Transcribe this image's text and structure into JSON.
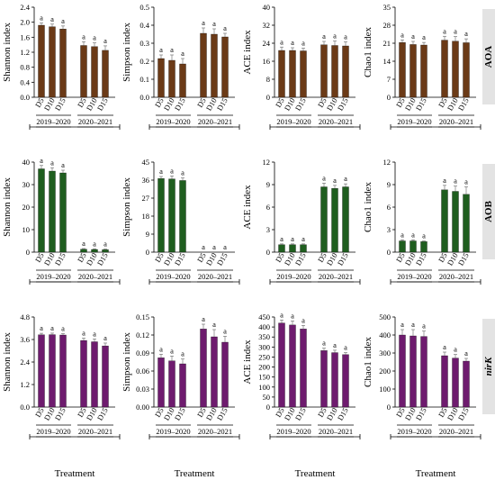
{
  "figure": {
    "xlabel": "Treatment",
    "groups": [
      "D5",
      "D10",
      "D15"
    ],
    "years": [
      "2019–2020",
      "2020–2021"
    ],
    "sig_letter": "a",
    "rows": [
      {
        "label": "AOA",
        "color": "#6b3a17"
      },
      {
        "label": "AOB",
        "color": "#1f5e1f"
      },
      {
        "label": "nirK",
        "color": "#6e1b6e"
      }
    ]
  },
  "chart_data": [
    {
      "type": "bar",
      "row": "AOA",
      "ylabel": "Shannon index",
      "ylim": [
        0,
        2.4
      ],
      "yticks": [
        "0.0",
        "0.4",
        "0.8",
        "1.2",
        "1.6",
        "2.0",
        "2.4"
      ],
      "categories": [
        "D5",
        "D10",
        "D15",
        "D5",
        "D10",
        "D15"
      ],
      "values": [
        1.92,
        1.88,
        1.82,
        1.38,
        1.35,
        1.25
      ],
      "errors": [
        0.06,
        0.07,
        0.08,
        0.1,
        0.1,
        0.12
      ]
    },
    {
      "type": "bar",
      "row": "AOA",
      "ylabel": "Simpson index",
      "ylim": [
        0,
        0.5
      ],
      "yticks": [
        "0.0",
        "0.1",
        "0.2",
        "0.3",
        "0.4",
        "0.5"
      ],
      "categories": [
        "D5",
        "D10",
        "D15",
        "D5",
        "D10",
        "D15"
      ],
      "values": [
        0.215,
        0.205,
        0.185,
        0.355,
        0.35,
        0.335
      ],
      "errors": [
        0.02,
        0.03,
        0.03,
        0.03,
        0.03,
        0.02
      ]
    },
    {
      "type": "bar",
      "row": "AOA",
      "ylabel": "ACE index",
      "ylim": [
        0,
        40
      ],
      "yticks": [
        "0",
        "8",
        "16",
        "24",
        "32",
        "40"
      ],
      "categories": [
        "D5",
        "D10",
        "D15",
        "D5",
        "D10",
        "D15"
      ],
      "values": [
        20.8,
        20.8,
        20.6,
        23.3,
        23.0,
        22.8
      ],
      "errors": [
        1.5,
        1.2,
        1.2,
        1.5,
        2.0,
        1.8
      ]
    },
    {
      "type": "bar",
      "row": "AOA",
      "ylabel": "Chao1 index",
      "ylim": [
        0,
        35
      ],
      "yticks": [
        "0",
        "7",
        "14",
        "21",
        "28",
        "35"
      ],
      "categories": [
        "D5",
        "D10",
        "D15",
        "D5",
        "D10",
        "D15"
      ],
      "values": [
        21.3,
        20.5,
        20.3,
        22.2,
        21.8,
        21.2
      ],
      "errors": [
        1.0,
        1.2,
        1.0,
        1.5,
        1.8,
        1.5
      ]
    },
    {
      "type": "bar",
      "row": "AOB",
      "ylabel": "Shannon index",
      "ylim": [
        0,
        40
      ],
      "yticks": [
        "0",
        "10",
        "20",
        "30",
        "40"
      ],
      "categories": [
        "D5",
        "D10",
        "D15",
        "D5",
        "D10",
        "D15"
      ],
      "values": [
        37,
        36,
        35.2,
        1.3,
        1.2,
        1.1
      ],
      "errors": [
        1.5,
        1.5,
        1.2,
        0.3,
        0.3,
        0.3
      ]
    },
    {
      "type": "bar",
      "row": "AOB",
      "ylabel": "Simpson index",
      "ylim": [
        0,
        45
      ],
      "yticks": [
        "0",
        "9",
        "18",
        "27",
        "36",
        "45"
      ],
      "categories": [
        "D5",
        "D10",
        "D15",
        "D5",
        "D10",
        "D15"
      ],
      "values": [
        36.8,
        36.6,
        35.8,
        0,
        0,
        0
      ],
      "errors": [
        1.0,
        1.5,
        1.3,
        0,
        0,
        0
      ]
    },
    {
      "type": "bar",
      "row": "AOB",
      "ylabel": "ACE index",
      "ylim": [
        0,
        12
      ],
      "yticks": [
        "0",
        "3",
        "6",
        "9",
        "12"
      ],
      "categories": [
        "D5",
        "D10",
        "D15",
        "D5",
        "D10",
        "D15"
      ],
      "values": [
        1.0,
        1.0,
        1.0,
        8.7,
        8.5,
        8.7
      ],
      "errors": [
        0.1,
        0.1,
        0.1,
        0.5,
        0.4,
        0.4
      ]
    },
    {
      "type": "bar",
      "row": "AOB",
      "ylabel": "Chao1 index",
      "ylim": [
        0,
        12
      ],
      "yticks": [
        "0",
        "3",
        "6",
        "9",
        "12"
      ],
      "categories": [
        "D5",
        "D10",
        "D15",
        "D5",
        "D10",
        "D15"
      ],
      "values": [
        1.5,
        1.5,
        1.4,
        8.3,
        8.1,
        7.7
      ],
      "errors": [
        0.15,
        0.15,
        0.1,
        0.6,
        0.7,
        1.0
      ]
    },
    {
      "type": "bar",
      "row": "nirK",
      "ylabel": "Shannon index",
      "ylim": [
        0,
        4.8
      ],
      "yticks": [
        "0.0",
        "1.2",
        "2.4",
        "3.6",
        "4.8"
      ],
      "categories": [
        "D5",
        "D10",
        "D15",
        "D5",
        "D10",
        "D15"
      ],
      "values": [
        3.85,
        3.86,
        3.84,
        3.55,
        3.48,
        3.26
      ],
      "errors": [
        0.08,
        0.08,
        0.07,
        0.12,
        0.15,
        0.15
      ]
    },
    {
      "type": "bar",
      "row": "nirK",
      "ylabel": "Simpson index",
      "ylim": [
        0,
        0.15
      ],
      "yticks": [
        "0.00",
        "0.03",
        "0.06",
        "0.09",
        "0.12",
        "0.15"
      ],
      "categories": [
        "D5",
        "D10",
        "D15",
        "D5",
        "D10",
        "D15"
      ],
      "values": [
        0.082,
        0.077,
        0.072,
        0.13,
        0.117,
        0.108
      ],
      "errors": [
        0.006,
        0.008,
        0.008,
        0.008,
        0.012,
        0.01
      ]
    },
    {
      "type": "bar",
      "row": "nirK",
      "ylabel": "ACE index",
      "ylim": [
        0,
        450
      ],
      "yticks": [
        "0",
        "50",
        "100",
        "150",
        "200",
        "250",
        "300",
        "350",
        "400",
        "450"
      ],
      "categories": [
        "D5",
        "D10",
        "D15",
        "D5",
        "D10",
        "D15"
      ],
      "values": [
        420,
        410,
        390,
        282,
        272,
        262
      ],
      "errors": [
        15,
        20,
        18,
        12,
        12,
        10
      ]
    },
    {
      "type": "bar",
      "row": "nirK",
      "ylabel": "Chao1 index",
      "ylim": [
        0,
        500
      ],
      "yticks": [
        "0",
        "100",
        "200",
        "300",
        "400",
        "500"
      ],
      "categories": [
        "D5",
        "D10",
        "D15",
        "D5",
        "D10",
        "D15"
      ],
      "values": [
        400,
        395,
        392,
        285,
        272,
        255
      ],
      "errors": [
        30,
        35,
        30,
        20,
        20,
        15
      ]
    }
  ]
}
